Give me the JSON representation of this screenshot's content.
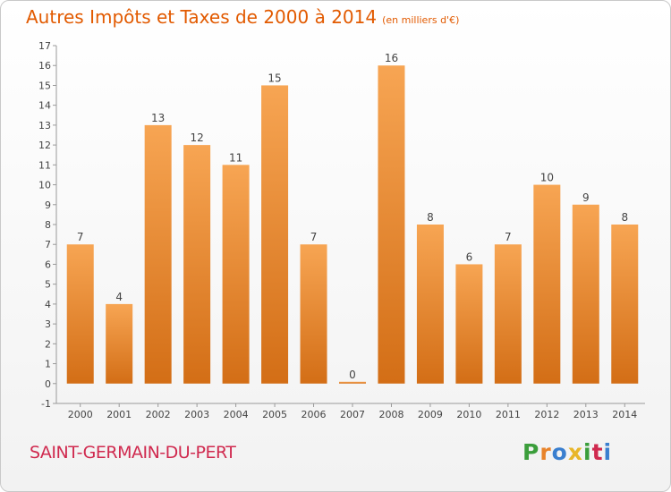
{
  "header": {
    "title": "Autres Impôts et Taxes de 2000 à 2014",
    "subtitle": "(en milliers d'€)"
  },
  "footer": {
    "municipality": "SAINT-GERMAIN-DU-PERT",
    "logo_letters": [
      "P",
      "r",
      "o",
      "x",
      "i",
      "t",
      "i"
    ],
    "logo_colors": [
      "#3b9e3b",
      "#e8832a",
      "#3a7fcf",
      "#e8b62a",
      "#3b9e3b",
      "#d02a4f",
      "#3a7fcf"
    ]
  },
  "colors": {
    "bar_top": "#f7a553",
    "bar_bottom": "#d36e16",
    "title": "#e25a00",
    "municipality": "#d02a4f"
  },
  "chart_data": {
    "type": "bar",
    "categories": [
      "2000",
      "2001",
      "2002",
      "2003",
      "2004",
      "2005",
      "2006",
      "2007",
      "2008",
      "2009",
      "2010",
      "2011",
      "2012",
      "2013",
      "2014"
    ],
    "values": [
      7,
      4,
      13,
      12,
      11,
      15,
      7,
      0,
      16,
      8,
      6,
      7,
      10,
      9,
      8
    ],
    "data_labels": [
      "7",
      "4",
      "13",
      "12",
      "11",
      "15",
      "7",
      "0",
      "16",
      "8",
      "6",
      "7",
      "10",
      "9",
      "8"
    ],
    "yticks": [
      "-1",
      "0",
      "1",
      "2",
      "3",
      "4",
      "5",
      "6",
      "7",
      "8",
      "9",
      "10",
      "11",
      "12",
      "13",
      "14",
      "15",
      "16",
      "17"
    ],
    "ylim": [
      -1,
      17
    ],
    "grid": false,
    "xlabel": "",
    "ylabel": ""
  }
}
